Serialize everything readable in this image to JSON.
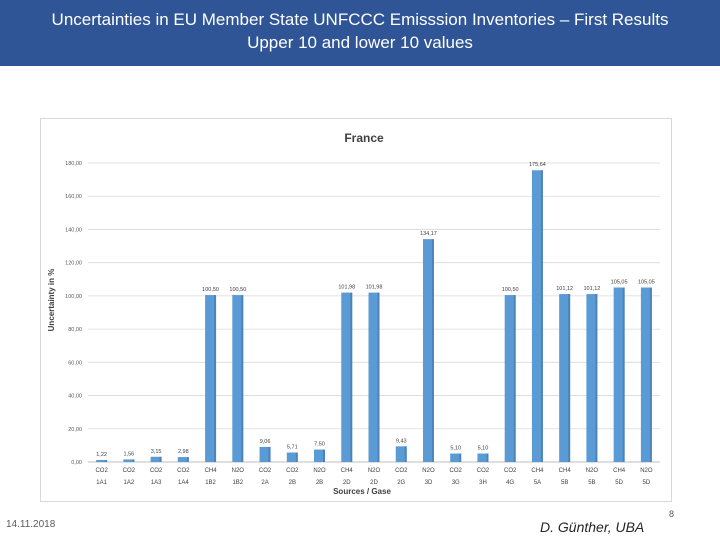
{
  "header": {
    "title_line1": "Uncertainties in EU Member State UNFCCC Emisssion Inventories – First Results",
    "title_line2": "Upper 10 and lower 10 values"
  },
  "footer": {
    "date": "14.11.2018",
    "author": "D. Günther, UBA",
    "page_number": "8"
  },
  "chart_data": {
    "type": "bar",
    "title": "France",
    "xlabel": "Sources / Gase",
    "ylabel": "Uncertainty in %",
    "ylim": [
      0,
      180
    ],
    "yticks": [
      "0,00",
      "20,00",
      "40,00",
      "60,00",
      "80,00",
      "100,00",
      "120,00",
      "140,00",
      "160,00",
      "180,00"
    ],
    "grid": true,
    "bar_color": "#5b9bd5",
    "gases": [
      "CO2",
      "CO2",
      "CO2",
      "CO2",
      "CH4",
      "N2O",
      "CO2",
      "CO2",
      "N2O",
      "CH4",
      "N2O",
      "CO2",
      "N2O",
      "CO2",
      "CO2",
      "CO2",
      "CH4",
      "CH4",
      "N2O",
      "CH4",
      "N2O"
    ],
    "categories": [
      "1A1",
      "1A2",
      "1A3",
      "1A4",
      "1B2",
      "1B2",
      "2A",
      "2B",
      "2B",
      "2D",
      "2D",
      "2G",
      "3D",
      "3G",
      "3H",
      "4G",
      "5A",
      "5B",
      "5B",
      "5D",
      "5D"
    ],
    "values": [
      1.22,
      1.56,
      3.15,
      2.98,
      100.5,
      100.5,
      9.06,
      5.71,
      7.5,
      101.98,
      101.98,
      9.43,
      134.17,
      5.1,
      5.1,
      100.5,
      175.64,
      101.12,
      101.12,
      105.05,
      105.05
    ],
    "data_labels": [
      "1,22",
      "1,56",
      "3,15",
      "2,98",
      "100,50",
      "100,50",
      "9,06",
      "5,71",
      "7,50",
      "101,98",
      "101,98",
      "9,43",
      "134,17",
      "5,10",
      "5,10",
      "100,50",
      "175,64",
      "101,12",
      "101,12",
      "105,05",
      "105,05"
    ]
  }
}
